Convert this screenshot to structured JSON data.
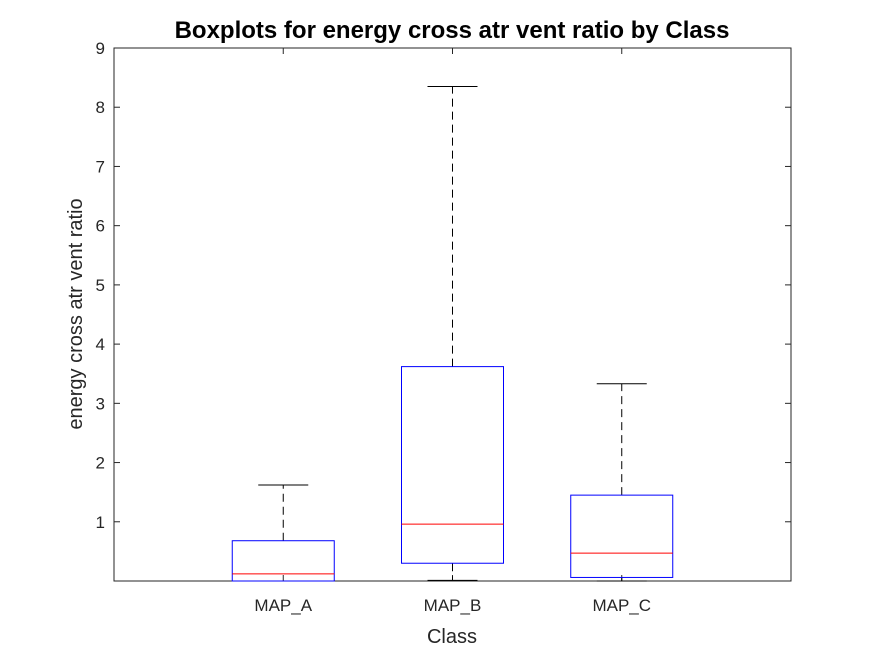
{
  "chart_data": {
    "type": "boxplot",
    "title": "Boxplots for energy cross atr vent ratio by Class",
    "xlabel": "Class",
    "ylabel": "energy cross atr vent ratio",
    "ylim": [
      0,
      9
    ],
    "yticks": [
      1,
      2,
      3,
      4,
      5,
      6,
      7,
      8,
      9
    ],
    "categories": [
      "MAP_A",
      "MAP_B",
      "MAP_C"
    ],
    "boxes": [
      {
        "label": "MAP_A",
        "whisker_low": 0.0,
        "q1": 0.0,
        "median": 0.12,
        "q3": 0.68,
        "whisker_high": 1.62
      },
      {
        "label": "MAP_B",
        "whisker_low": 0.01,
        "q1": 0.3,
        "median": 0.96,
        "q3": 3.62,
        "whisker_high": 8.35
      },
      {
        "label": "MAP_C",
        "whisker_low": 0.0,
        "q1": 0.06,
        "median": 0.47,
        "q3": 1.45,
        "whisker_high": 3.33
      }
    ],
    "grid": false,
    "colors": {
      "box": "#0000ff",
      "median": "#ff0000",
      "whisker": "#000000",
      "axis": "#262626"
    }
  }
}
